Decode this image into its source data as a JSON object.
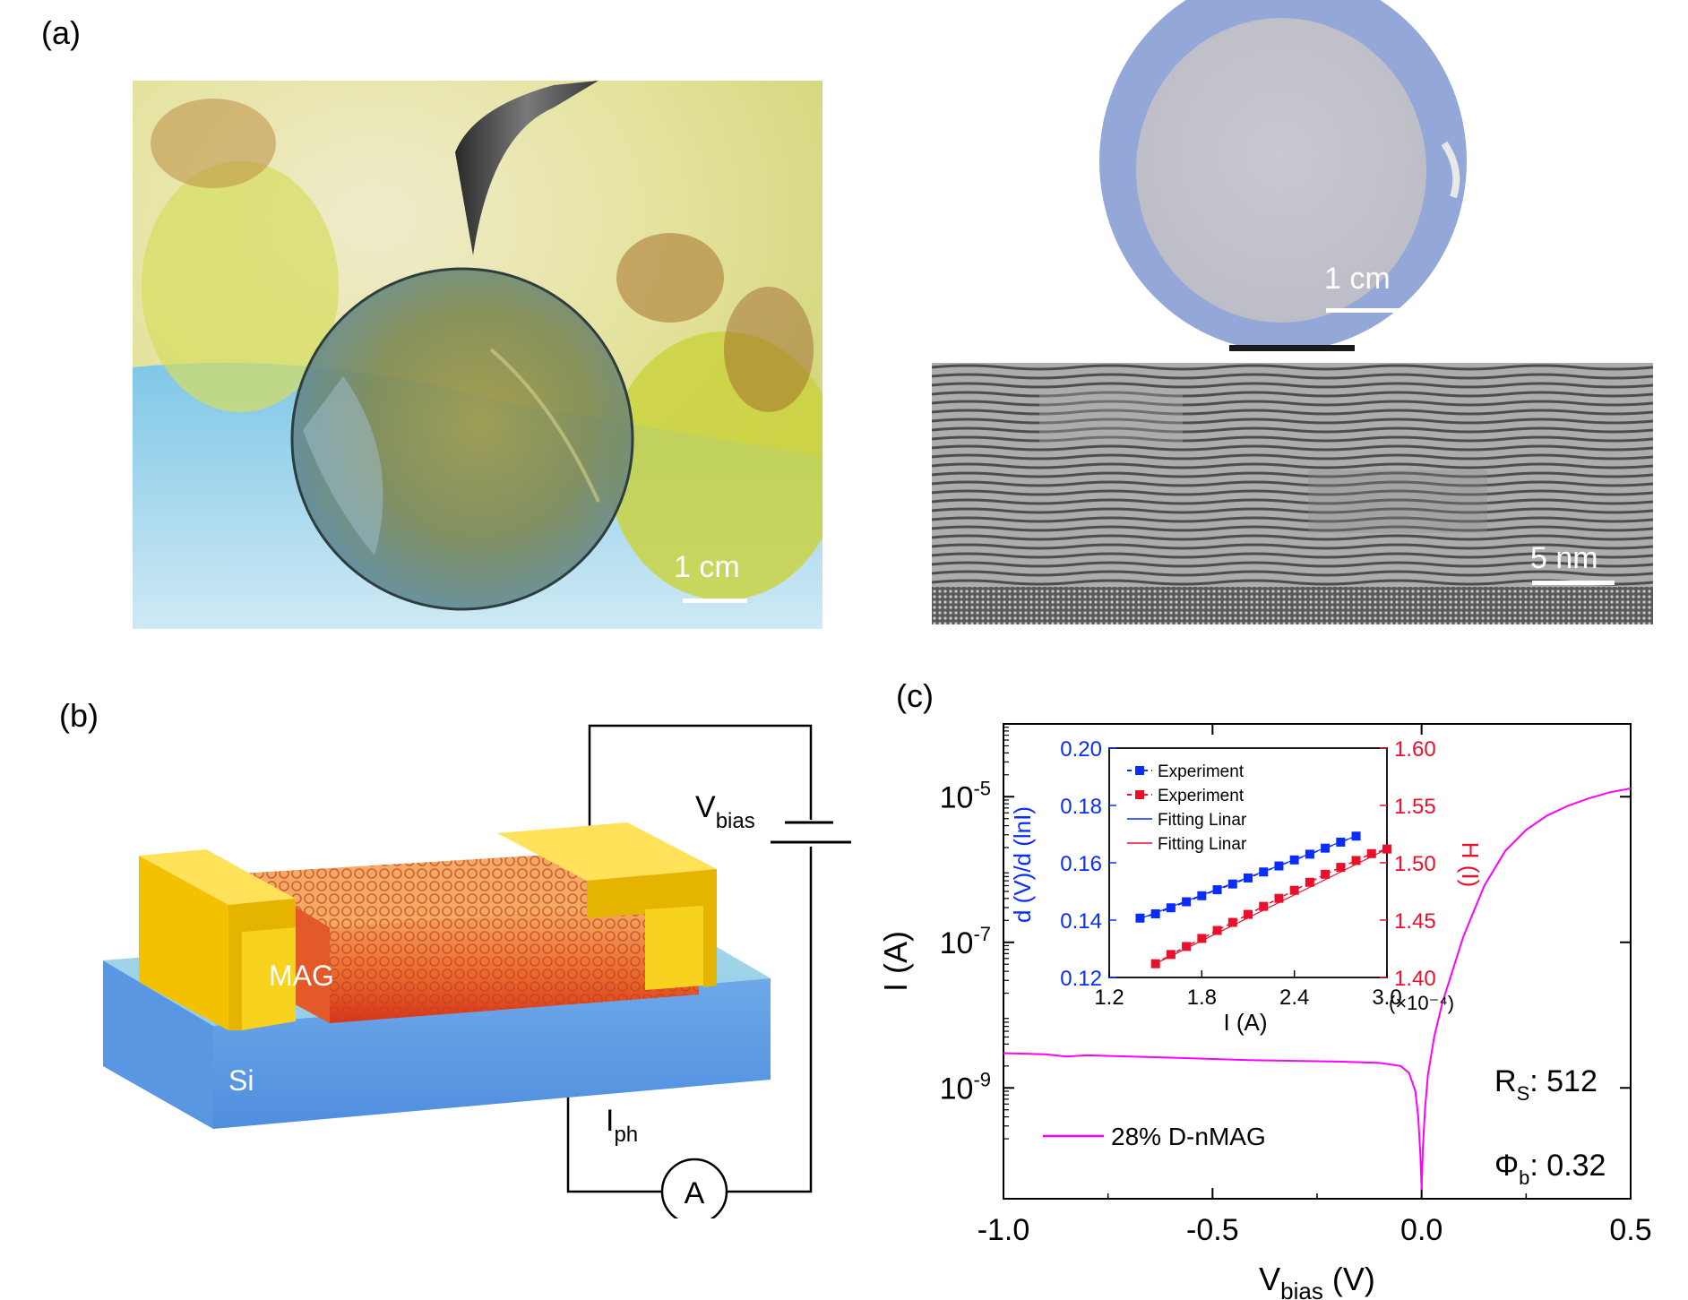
{
  "panels": {
    "a": {
      "label": "(a)",
      "photo_scale": "1 cm",
      "wafer_scale": "1 cm",
      "tem_scale": "5 nm"
    },
    "b": {
      "label": "(b)",
      "layer_top": "MAG",
      "layer_bottom": "Si",
      "vbias_main": "V",
      "vbias_sub": "bias",
      "iph_main": "I",
      "iph_sub": "ph",
      "ammeter": "A"
    },
    "c": {
      "label": "(c)",
      "legend": "28% D-nMAG",
      "rs_main": "R",
      "rs_sub": "S",
      "rs_value": ": 512",
      "phi_main": "Φ",
      "phi_sub": "b",
      "phi_value": ": 0.32",
      "xlabel_main": "V",
      "xlabel_sub": "bias",
      "xlabel_unit": " (V)",
      "ylabel": "I (A)",
      "inset": {
        "ylabel_left": "d (V)/d (lnI)",
        "ylabel_right": "H (I)",
        "xlabel": "I (A)",
        "x_multiplier": "(×10⁻⁴)",
        "legend": [
          "Experiment",
          "Experiment",
          "Fitting Linar",
          "Fitting Linar"
        ]
      }
    }
  },
  "colors": {
    "main_curve": "#ff00ff",
    "inset_blue": "#0a2cff",
    "inset_red": "#e8102a",
    "gold": "#f2c200",
    "silicon": "#6aa8f0"
  },
  "chart_data": [
    {
      "type": "line",
      "xlabel": "V_bias (V)",
      "ylabel": "I (A)",
      "xlim": [
        -1.0,
        0.5
      ],
      "ylim": [
        3e-11,
        0.0001
      ],
      "yscale": "log",
      "x_ticks": [
        -1.0,
        -0.5,
        0.0,
        0.5
      ],
      "x_tick_labels": [
        "-1.0",
        "-0.5",
        "0.0",
        "0.5"
      ],
      "y_ticks": [
        1e-09,
        1e-07,
        1e-05
      ],
      "y_tick_labels": [
        [
          "10",
          "-9"
        ],
        [
          "10",
          "-7"
        ],
        [
          "10",
          "-5"
        ]
      ],
      "series": [
        {
          "name": "28% D-nMAG",
          "x": [
            -1.0,
            -0.9,
            -0.85,
            -0.8,
            -0.6,
            -0.4,
            -0.2,
            -0.1,
            -0.05,
            -0.03,
            -0.015,
            -0.008,
            -0.003,
            0.0,
            0.003,
            0.008,
            0.015,
            0.03,
            0.05,
            0.1,
            0.15,
            0.2,
            0.25,
            0.3,
            0.35,
            0.4,
            0.45,
            0.5
          ],
          "y": [
            3e-09,
            2.9e-09,
            2.7e-09,
            2.8e-09,
            2.6e-09,
            2.4e-09,
            2.3e-09,
            2.2e-09,
            2e-09,
            1.6e-09,
            9e-10,
            4e-10,
            1.2e-10,
            4e-11,
            1.5e-10,
            5e-10,
            1.5e-09,
            5e-09,
            1.5e-08,
            1.2e-07,
            6e-07,
            1.8e-06,
            3.5e-06,
            5.5e-06,
            7.5e-06,
            9.5e-06,
            1.15e-05,
            1.3e-05
          ]
        }
      ]
    },
    {
      "type": "line",
      "xlabel": "I (A)",
      "ylabel": "d (V)/d (lnI)",
      "ylabel_right": "H (I)",
      "xlim": [
        1.2,
        3.0
      ],
      "ylim": [
        0.12,
        0.2
      ],
      "ylim_right": [
        1.4,
        1.6
      ],
      "x_ticks": [
        1.2,
        1.8,
        2.4,
        3.0
      ],
      "y_ticks": [
        0.12,
        0.14,
        0.16,
        0.18,
        0.2
      ],
      "y_ticks_right": [
        1.4,
        1.45,
        1.5,
        1.55,
        1.6
      ],
      "x_tick_labels": [
        "1.2",
        "1.8",
        "2.4",
        "3.0"
      ],
      "y_tick_labels": [
        "0.12",
        "0.14",
        "0.16",
        "0.18",
        "0.20"
      ],
      "y_tick_labels_right": [
        "1.40",
        "1.45",
        "1.50",
        "1.55",
        "1.60"
      ],
      "series": [
        {
          "name": "Experiment",
          "axis": "left",
          "x": [
            1.4,
            1.5,
            1.6,
            1.7,
            1.8,
            1.9,
            2.0,
            2.1,
            2.2,
            2.3,
            2.4,
            2.5,
            2.6,
            2.7,
            2.8
          ],
          "y": [
            0.1407,
            0.1422,
            0.1443,
            0.1464,
            0.1485,
            0.1506,
            0.1526,
            0.1547,
            0.1568,
            0.1589,
            0.161,
            0.163,
            0.1651,
            0.1672,
            0.1693
          ]
        },
        {
          "name": "Experiment",
          "axis": "right",
          "x": [
            1.5,
            1.6,
            1.7,
            1.8,
            1.9,
            2.0,
            2.1,
            2.2,
            2.3,
            2.4,
            2.5,
            2.6,
            2.7,
            2.8,
            2.9,
            3.0
          ],
          "y": [
            1.412,
            1.42,
            1.427,
            1.434,
            1.441,
            1.448,
            1.455,
            1.462,
            1.469,
            1.476,
            1.483,
            1.49,
            1.496,
            1.502,
            1.508,
            1.512
          ]
        },
        {
          "name": "Fitting Linar",
          "axis": "left",
          "x": [
            1.4,
            2.8
          ],
          "y": [
            0.1405,
            0.1693
          ]
        },
        {
          "name": "Fitting Linar",
          "axis": "right",
          "x": [
            1.5,
            3.0
          ],
          "y": [
            1.412,
            1.512
          ]
        }
      ]
    }
  ]
}
